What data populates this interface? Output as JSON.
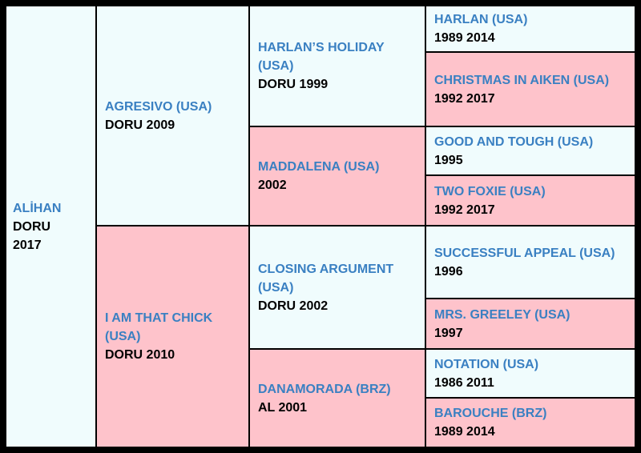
{
  "colors": {
    "male_bg": "#f0fcfd",
    "female_bg": "#fec3cb",
    "name_text": "#3a80c2",
    "info_text": "#000000",
    "border": "#000000"
  },
  "horse": {
    "name": "ALİHAN",
    "color": "DORU",
    "year": "2017"
  },
  "sire": {
    "name": "AGRESIVO (USA)",
    "info": "DORU 2009"
  },
  "dam": {
    "name": "I AM THAT CHICK (USA)",
    "info": "DORU 2010"
  },
  "sire_sire": {
    "name": "HARLAN’S HOLIDAY (USA)",
    "info": "DORU 1999"
  },
  "sire_dam": {
    "name": "MADDALENA (USA)",
    "info": "2002"
  },
  "dam_sire": {
    "name": "CLOSING ARGUMENT (USA)",
    "info": "DORU 2002"
  },
  "dam_dam": {
    "name": "DANAMORADA (BRZ)",
    "info": "AL 2001"
  },
  "g3": [
    {
      "name": "HARLAN (USA)",
      "info": "1989 2014"
    },
    {
      "name": "CHRISTMAS IN AIKEN (USA)",
      "info": "1992 2017"
    },
    {
      "name": "GOOD AND TOUGH (USA)",
      "info": "1995"
    },
    {
      "name": "TWO FOXIE (USA)",
      "info": "1992 2017"
    },
    {
      "name": "SUCCESSFUL APPEAL (USA)",
      "info": "1996"
    },
    {
      "name": "MRS. GREELEY (USA)",
      "info": "1997"
    },
    {
      "name": "NOTATION (USA)",
      "info": "1986 2011"
    },
    {
      "name": "BAROUCHE (BRZ)",
      "info": "1989 2014"
    }
  ]
}
